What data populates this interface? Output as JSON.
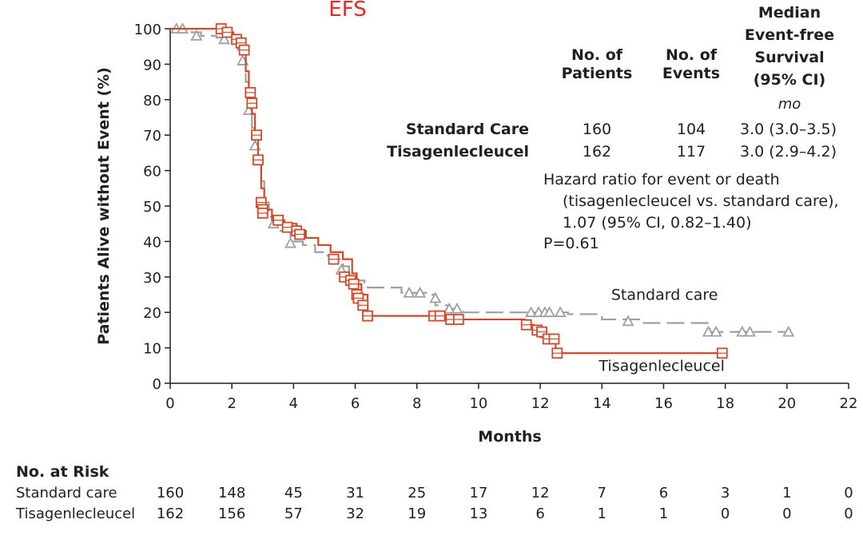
{
  "chart_data": {
    "type": "line",
    "title": "EFS",
    "xlabel": "Months",
    "ylabel": "Patients Alive without Event (%)",
    "xlim": [
      0,
      22
    ],
    "ylim": [
      0,
      100
    ],
    "xticks": [
      0,
      2,
      4,
      6,
      8,
      10,
      12,
      14,
      16,
      18,
      20,
      22
    ],
    "yticks": [
      0,
      10,
      20,
      30,
      40,
      50,
      60,
      70,
      80,
      90,
      100
    ],
    "series": [
      {
        "name": "Standard care",
        "color": "#9d9fa2",
        "style": "dashed",
        "marker": "triangle",
        "x": [
          0,
          0.3,
          0.6,
          1.0,
          1.5,
          1.8,
          2.0,
          2.2,
          2.35,
          2.45,
          2.55,
          2.65,
          2.75,
          2.85,
          2.95,
          3.05,
          3.2,
          3.5,
          3.9,
          4.3,
          4.7,
          5.0,
          5.3,
          5.6,
          5.8,
          6.0,
          6.3,
          7.5,
          8.3,
          8.6,
          9.0,
          9.5,
          11.5,
          12.9,
          14.0,
          15.3,
          17.5,
          19.0,
          20.1
        ],
        "y": [
          100,
          99.5,
          99,
          98,
          97.5,
          97,
          96,
          94,
          91,
          85,
          77,
          72,
          67,
          62,
          57,
          51,
          47,
          43,
          40,
          39,
          37,
          36,
          35,
          33,
          31,
          29,
          27,
          25.5,
          25,
          22,
          21,
          20,
          20,
          19.5,
          18,
          17,
          14.5,
          14.5,
          14.5
        ],
        "censor_x": [
          0.2,
          0.4,
          0.85,
          1.75,
          2.35,
          2.55,
          2.75,
          3.35,
          3.9,
          5.55,
          7.75,
          8.1,
          8.6,
          9.05,
          9.3,
          11.7,
          11.95,
          12.15,
          12.3,
          12.65,
          14.85,
          17.45,
          17.7,
          18.55,
          18.8,
          20.05
        ],
        "censor_y": [
          100,
          100,
          98,
          97,
          91,
          77,
          67,
          45,
          39.5,
          32,
          25.5,
          25.5,
          24,
          21,
          21,
          20,
          20,
          20,
          20,
          20,
          17.5,
          14.5,
          14.5,
          14.5,
          14.5,
          14.5
        ]
      },
      {
        "name": "Tisagenlecleucel",
        "color": "#cf4a2a",
        "style": "solid",
        "marker": "square",
        "x": [
          0,
          1.5,
          1.8,
          2.05,
          2.2,
          2.35,
          2.45,
          2.55,
          2.65,
          2.75,
          2.85,
          2.95,
          3.05,
          3.3,
          3.7,
          4.1,
          4.4,
          4.8,
          5.2,
          5.6,
          5.9,
          6.05,
          6.2,
          6.4,
          8.5,
          9.0,
          11.0,
          11.5,
          11.8,
          12.0,
          12.2,
          12.5,
          17.9
        ],
        "y": [
          100,
          100,
          99,
          97,
          96,
          94,
          88,
          82,
          76,
          70,
          63,
          55,
          49,
          46,
          45,
          43,
          41,
          39,
          37,
          35,
          31,
          28,
          25,
          19,
          19,
          18,
          18,
          16.5,
          15,
          13,
          12,
          8.5,
          8.5
        ],
        "censor_x": [
          1.65,
          1.85,
          2.15,
          2.3,
          2.4,
          2.6,
          2.65,
          2.8,
          2.85,
          2.95,
          3.0,
          3.0,
          3.5,
          3.8,
          4.1,
          4.2,
          5.3,
          5.65,
          5.85,
          5.95,
          6.05,
          6.1,
          6.25,
          6.4,
          8.55,
          8.75,
          9.1,
          9.35,
          11.55,
          11.9,
          12.05,
          12.25,
          12.45,
          12.55,
          17.9
        ],
        "censor_y": [
          100,
          99,
          97,
          96,
          94,
          82,
          79,
          70,
          63,
          51,
          49,
          48,
          46,
          44,
          43,
          42,
          35,
          30,
          29,
          28,
          25,
          24,
          22,
          19,
          19,
          19,
          18,
          18,
          16.5,
          15,
          14.5,
          12.5,
          12.5,
          8.5,
          8.5
        ]
      }
    ],
    "annotations": [
      {
        "text": "Standard care",
        "x": 14.3,
        "y": 23.5
      },
      {
        "text": "Tisagenlecleucel",
        "x": 13.9,
        "y": 3.5
      }
    ]
  },
  "summary_table": {
    "headers": {
      "patients": [
        "No. of",
        "Patients"
      ],
      "events": [
        "No. of",
        "Events"
      ],
      "median": [
        "Median",
        "Event-free",
        "Survival",
        "(95% CI)"
      ]
    },
    "unit": "mo",
    "rows": [
      {
        "label": "Standard Care",
        "patients": "160",
        "events": "104",
        "median": "3.0 (3.0–3.5)"
      },
      {
        "label": "Tisagenlecleucel",
        "patients": "162",
        "events": "117",
        "median": "3.0 (2.9–4.2)"
      }
    ]
  },
  "hazard": {
    "line1": "Hazard ratio for event or death",
    "line2": "(tisagenlecleucel vs. standard care),",
    "line3": "1.07 (95% CI, 0.82–1.40)",
    "pvalue": "P=0.61"
  },
  "risk_table": {
    "title": "No. at Risk",
    "rows": [
      {
        "label": "Standard care",
        "values": [
          "160",
          "148",
          "45",
          "31",
          "25",
          "17",
          "12",
          "7",
          "6",
          "3",
          "1",
          "0"
        ]
      },
      {
        "label": "Tisagenlecleucel",
        "values": [
          "162",
          "156",
          "57",
          "32",
          "19",
          "13",
          "6",
          "1",
          "1",
          "0",
          "0",
          "0"
        ]
      }
    ]
  }
}
